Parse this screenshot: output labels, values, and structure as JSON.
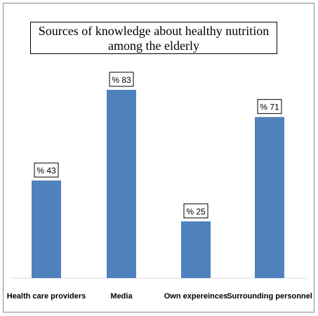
{
  "chart_data": {
    "type": "bar",
    "title_line1": "Sources of knowledge about healthy nutrition",
    "title_line2": "among the elderly",
    "categories": [
      "Health care providers",
      "Media",
      "Own expereinces",
      "Surrounding personnel"
    ],
    "values": [
      43,
      83,
      25,
      71
    ],
    "data_labels": [
      "% 43",
      "% 83",
      "% 25",
      "% 71"
    ],
    "ylim": [
      0,
      100
    ],
    "grid": false,
    "legend": "none",
    "bar_color": "#4f81bd",
    "axis_color": "#d9d9d9"
  }
}
